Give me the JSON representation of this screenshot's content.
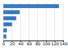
{
  "chart_data": {
    "type": "bar",
    "orientation": "horizontal",
    "categories": [
      null,
      null,
      null,
      null,
      null,
      null
    ],
    "values": [
      130,
      38,
      30,
      20,
      8,
      7
    ],
    "color": "#3a7abf",
    "xlim": [
      0,
      140
    ],
    "xticks": [
      0,
      20,
      40,
      60,
      80,
      100,
      120,
      140
    ],
    "grid": true,
    "tick_labels": "x"
  }
}
